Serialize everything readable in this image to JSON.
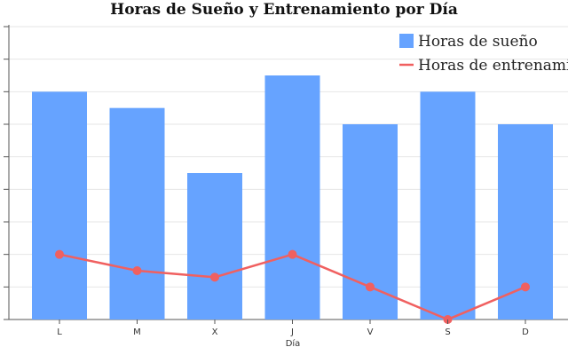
{
  "chart_data": {
    "type": "bar+line",
    "title": "Horas de Sueño y Entrenamiento por Día",
    "xlabel": "Día",
    "ylabel": "",
    "categories": [
      "L",
      "M",
      "X",
      "J",
      "V",
      "S",
      "D"
    ],
    "ylim": [
      0,
      9
    ],
    "y_tick_step": 1,
    "grid": true,
    "legend_position": "top-right",
    "series": [
      {
        "name": "Horas de sueño",
        "kind": "bar",
        "color": "#66a3ff",
        "values": [
          7,
          6.5,
          4.5,
          7.5,
          6,
          7,
          6
        ]
      },
      {
        "name": "Horas de entrenamiento",
        "kind": "line",
        "color": "#f06060",
        "values": [
          2,
          1.5,
          1.3,
          2,
          1,
          0,
          1
        ]
      }
    ]
  }
}
